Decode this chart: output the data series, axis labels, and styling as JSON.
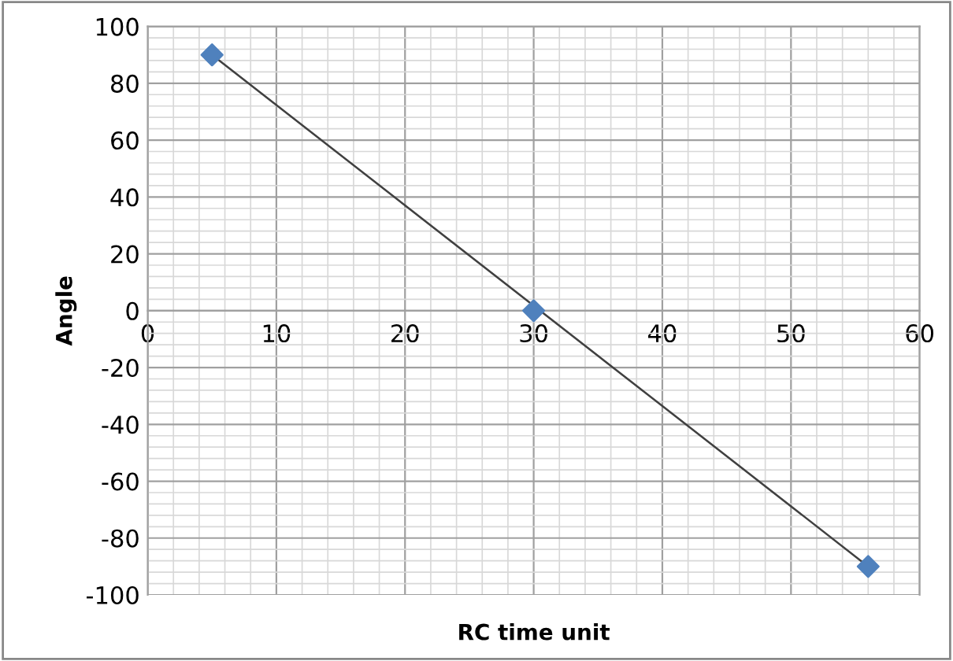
{
  "chart_data": {
    "type": "scatter",
    "xlabel": "RC time unit",
    "ylabel": "Angle",
    "series": [
      {
        "x": [
          5,
          30,
          56
        ],
        "values": [
          90,
          0,
          -90
        ],
        "color": "#4f81bd",
        "marker": "diamond"
      },
      {
        "type": "line",
        "x": [
          5,
          56
        ],
        "values": [
          90,
          -90
        ],
        "color": "#404040",
        "marker": "none",
        "line_style": "solid"
      }
    ],
    "xlim": [
      0,
      60
    ],
    "xticks": [
      0,
      10,
      20,
      30,
      40,
      50,
      60
    ],
    "ylim": [
      -100,
      100
    ],
    "yticks": [
      -100,
      -80,
      -60,
      -40,
      -20,
      0,
      20,
      40,
      60,
      80,
      100
    ],
    "grid": true,
    "legend": false
  }
}
